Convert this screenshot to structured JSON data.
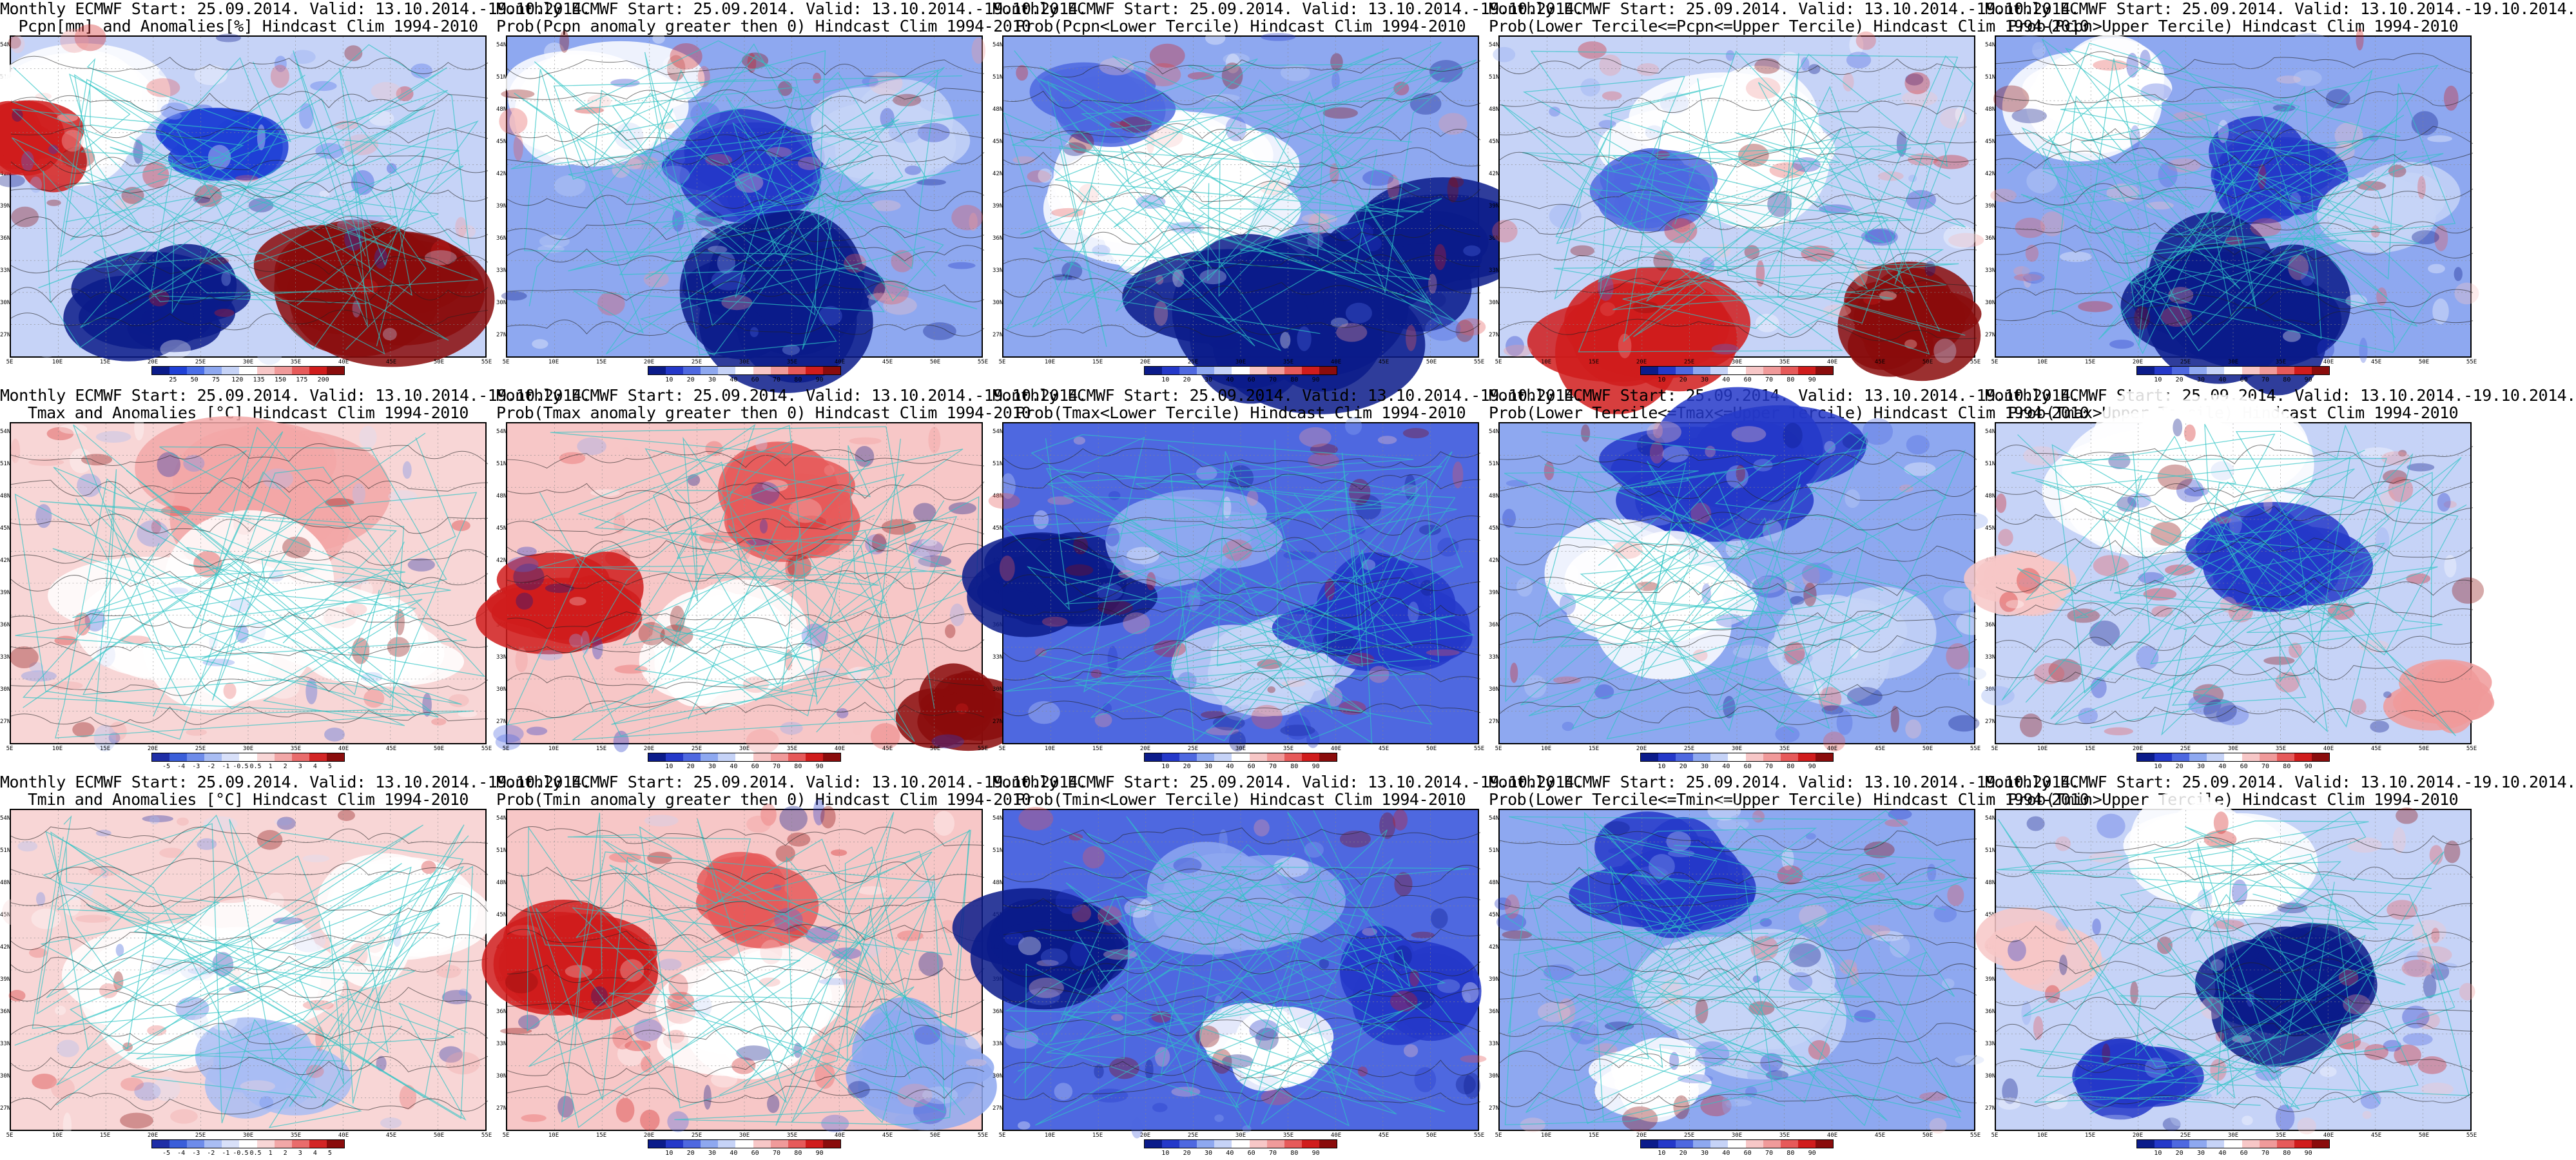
{
  "axes": {
    "lat_labels": [
      "54N",
      "51N",
      "48N",
      "45N",
      "42N",
      "39N",
      "36N",
      "33N",
      "30N",
      "27N"
    ],
    "lon_labels": [
      "5E",
      "10E",
      "15E",
      "20E",
      "25E",
      "30E",
      "35E",
      "40E",
      "45E",
      "50E",
      "55E"
    ]
  },
  "palettes": {
    "anom_pcp": [
      "#0b1b8a",
      "#1f40d6",
      "#4a6ee8",
      "#8ea8f0",
      "#c6d3f7",
      "#ffffff",
      "#f7c7c7",
      "#f09a9a",
      "#e65a5a",
      "#d01c1c",
      "#8a0c0c"
    ],
    "anom_t": [
      "#1f2ea6",
      "#3a5ed9",
      "#6e8cea",
      "#a9bdf3",
      "#d8e0f9",
      "#ffffff",
      "#f8d6d6",
      "#f2a7a7",
      "#e96c6c",
      "#d32525",
      "#8a0c0c"
    ],
    "prob": [
      "#0b1b8a",
      "#2438c9",
      "#4e68e0",
      "#8ea8f0",
      "#c6d3f7",
      "#ffffff",
      "#f7c7c7",
      "#f09a9a",
      "#e65a5a",
      "#d01c1c",
      "#8a0c0c"
    ]
  },
  "panels": [
    {
      "title1": "Monthly ECMWF Start: 25.09.2014. Valid: 13.10.2014.-19.10.2014.",
      "title2": "Pcpn[mm] and Anomalies[%] Hindcast Clim 1994-2010",
      "palette": "anom_pcp",
      "cb_ticks": [
        "25",
        "50",
        "75",
        "120",
        "135",
        "150",
        "175",
        "200"
      ],
      "base": "#c6d3f7",
      "blobs": [
        [
          "#ffffff",
          0.15,
          0.25,
          0.18
        ],
        [
          "#1f40d6",
          0.45,
          0.35,
          0.12
        ],
        [
          "#8a0c0c",
          0.75,
          0.75,
          0.2
        ],
        [
          "#0b1b8a",
          0.3,
          0.85,
          0.15
        ],
        [
          "#d01c1c",
          0.05,
          0.35,
          0.12
        ]
      ]
    },
    {
      "title1": "Monthly ECMWF Start: 25.09.2014. Valid: 13.10.2014.-19.10.2014.",
      "title2": "Prob(Pcpn anomaly greater then 0) Hindcast Clim 1994-2010",
      "palette": "prob",
      "cb_ticks": [
        "10",
        "20",
        "30",
        "40",
        "60",
        "70",
        "80",
        "90"
      ],
      "base": "#8ea8f0",
      "blobs": [
        [
          "#ffffff",
          0.2,
          0.2,
          0.18
        ],
        [
          "#2438c9",
          0.5,
          0.4,
          0.14
        ],
        [
          "#0b1b8a",
          0.6,
          0.8,
          0.22
        ],
        [
          "#c6d3f7",
          0.8,
          0.3,
          0.12
        ]
      ]
    },
    {
      "title1": "Monthly ECMWF Start: 25.09.2014. Valid: 13.10.2014.-19.10.2014.",
      "title2": "Prob(Pcpn<Lower Tercile) Hindcast Clim 1994-2010",
      "palette": "prob",
      "cb_ticks": [
        "10",
        "20",
        "30",
        "40",
        "60",
        "70",
        "80",
        "90"
      ],
      "base": "#8ea8f0",
      "blobs": [
        [
          "#ffffff",
          0.35,
          0.45,
          0.22
        ],
        [
          "#0b1b8a",
          0.55,
          0.9,
          0.25
        ],
        [
          "#0b1b8a",
          0.9,
          0.7,
          0.18
        ],
        [
          "#4e68e0",
          0.2,
          0.2,
          0.12
        ]
      ]
    },
    {
      "title1": "Monthly ECMWF Start: 25.09.2014. Valid: 13.10.2014.-19.10.2014.",
      "title2": "Prob(Lower Tercile<=Pcpn<=Upper Tercile) Hindcast Clim 1994-2010",
      "palette": "prob",
      "cb_ticks": [
        "10",
        "20",
        "30",
        "40",
        "60",
        "70",
        "80",
        "90"
      ],
      "base": "#c6d3f7",
      "blobs": [
        [
          "#ffffff",
          0.5,
          0.35,
          0.2
        ],
        [
          "#d01c1c",
          0.3,
          0.9,
          0.18
        ],
        [
          "#8a0c0c",
          0.85,
          0.9,
          0.15
        ],
        [
          "#4e68e0",
          0.3,
          0.5,
          0.12
        ]
      ]
    },
    {
      "title1": "Monthly ECMWF Start: 25.09.2014. Valid: 13.10.2014.-19.10.2014.",
      "title2": "Prob(Pcpn>Upper Tercile) Hindcast Clim 1994-2010",
      "palette": "prob",
      "cb_ticks": [
        "10",
        "20",
        "30",
        "40",
        "60",
        "70",
        "80",
        "90"
      ],
      "base": "#8ea8f0",
      "blobs": [
        [
          "#ffffff",
          0.2,
          0.2,
          0.16
        ],
        [
          "#2438c9",
          0.55,
          0.4,
          0.14
        ],
        [
          "#0b1b8a",
          0.55,
          0.85,
          0.2
        ],
        [
          "#c6d3f7",
          0.85,
          0.5,
          0.12
        ]
      ]
    },
    {
      "title1": "Monthly ECMWF Start: 25.09.2014. Valid: 13.10.2014.-19.10.2014.",
      "title2": "Tmax and Anomalies [°C] Hindcast Clim 1994-2010",
      "palette": "anom_t",
      "cb_ticks": [
        "-5",
        "-4",
        "-3",
        "-2",
        "-1",
        "-0.5",
        "0.5",
        "1",
        "2",
        "3",
        "4",
        "5"
      ],
      "base": "#f8d6d6",
      "blobs": [
        [
          "#f2a7a7",
          0.5,
          0.2,
          0.2
        ],
        [
          "#ffffff",
          0.4,
          0.6,
          0.22
        ],
        [
          "#ffffff",
          0.75,
          0.7,
          0.15
        ]
      ]
    },
    {
      "title1": "Monthly ECMWF Start: 25.09.2014. Valid: 13.10.2014.-19.10.2014.",
      "title2": "Prob(Tmax anomaly greater then 0) Hindcast Clim 1994-2010",
      "palette": "prob",
      "cb_ticks": [
        "10",
        "20",
        "30",
        "40",
        "60",
        "70",
        "80",
        "90"
      ],
      "base": "#f7c7c7",
      "blobs": [
        [
          "#d01c1c",
          0.15,
          0.55,
          0.15
        ],
        [
          "#e65a5a",
          0.6,
          0.25,
          0.14
        ],
        [
          "#ffffff",
          0.45,
          0.7,
          0.15
        ],
        [
          "#8a0c0c",
          0.95,
          0.9,
          0.1
        ]
      ]
    },
    {
      "title1": "Monthly ECMWF Start: 25.09.2014. Valid: 13.10.2014.-19.10.2014.",
      "title2": "Prob(Tmax<Lower Tercile) Hindcast Clim 1994-2010",
      "palette": "prob",
      "cb_ticks": [
        "10",
        "20",
        "30",
        "40",
        "60",
        "70",
        "80",
        "90"
      ],
      "base": "#4e68e0",
      "blobs": [
        [
          "#0b1b8a",
          0.1,
          0.5,
          0.15
        ],
        [
          "#8ea8f0",
          0.4,
          0.3,
          0.14
        ],
        [
          "#c6d3f7",
          0.55,
          0.75,
          0.14
        ],
        [
          "#2438c9",
          0.8,
          0.6,
          0.15
        ]
      ]
    },
    {
      "title1": "Monthly ECMWF Start: 25.09.2014. Valid: 13.10.2014.-19.10.2014.",
      "title2": "Prob(Lower Tercile<=Tmax<=Upper Tercile) Hindcast Clim 1994-2010",
      "palette": "prob",
      "cb_ticks": [
        "10",
        "20",
        "30",
        "40",
        "60",
        "70",
        "80",
        "90"
      ],
      "base": "#8ea8f0",
      "blobs": [
        [
          "#2438c9",
          0.5,
          0.15,
          0.2
        ],
        [
          "#ffffff",
          0.3,
          0.55,
          0.16
        ],
        [
          "#c6d3f7",
          0.75,
          0.7,
          0.14
        ]
      ]
    },
    {
      "title1": "Monthly ECMWF Start: 25.09.2014. Valid: 13.10.2014.-19.10.2014.",
      "title2": "Prob(Tmax>Upper Tercile) Hindcast Clim 1994-2010",
      "palette": "prob",
      "cb_ticks": [
        "10",
        "20",
        "30",
        "40",
        "60",
        "70",
        "80",
        "90"
      ],
      "base": "#c6d3f7",
      "blobs": [
        [
          "#ffffff",
          0.4,
          0.15,
          0.2
        ],
        [
          "#2438c9",
          0.6,
          0.45,
          0.15
        ],
        [
          "#f7c7c7",
          0.08,
          0.5,
          0.1
        ],
        [
          "#f09a9a",
          0.95,
          0.85,
          0.1
        ]
      ]
    },
    {
      "title1": "Monthly ECMWF Start: 25.09.2014. Valid: 13.10.2014.-19.10.2014.",
      "title2": "Tmin and Anomalies [°C] Hindcast Clim 1994-2010",
      "palette": "anom_t",
      "cb_ticks": [
        "-5",
        "-4",
        "-3",
        "-2",
        "-1",
        "-0.5",
        "0.5",
        "1",
        "2",
        "3",
        "4",
        "5"
      ],
      "base": "#f8d6d6",
      "blobs": [
        [
          "#ffffff",
          0.4,
          0.6,
          0.22
        ],
        [
          "#a9bdf3",
          0.55,
          0.8,
          0.12
        ],
        [
          "#ffffff",
          0.8,
          0.35,
          0.15
        ]
      ]
    },
    {
      "title1": "Monthly ECMWF Start: 25.09.2014. Valid: 13.10.2014.-19.10.2014.",
      "title2": "Prob(Tmin anomaly greater then 0) Hindcast Clim 1994-2010",
      "palette": "prob",
      "cb_ticks": [
        "10",
        "20",
        "30",
        "40",
        "60",
        "70",
        "80",
        "90"
      ],
      "base": "#f7c7c7",
      "blobs": [
        [
          "#d01c1c",
          0.15,
          0.45,
          0.15
        ],
        [
          "#ffffff",
          0.5,
          0.65,
          0.18
        ],
        [
          "#8ea8f0",
          0.85,
          0.8,
          0.14
        ],
        [
          "#e65a5a",
          0.55,
          0.25,
          0.12
        ]
      ]
    },
    {
      "title1": "Monthly ECMWF Start: 25.09.2014. Valid: 13.10.2014.-19.10.2014.",
      "title2": "Prob(Tmin<Lower Tercile) Hindcast Clim 1994-2010",
      "palette": "prob",
      "cb_ticks": [
        "10",
        "20",
        "30",
        "40",
        "60",
        "70",
        "80",
        "90"
      ],
      "base": "#4e68e0",
      "blobs": [
        [
          "#0b1b8a",
          0.1,
          0.4,
          0.15
        ],
        [
          "#8ea8f0",
          0.5,
          0.3,
          0.15
        ],
        [
          "#ffffff",
          0.55,
          0.75,
          0.12
        ],
        [
          "#2438c9",
          0.85,
          0.55,
          0.14
        ]
      ]
    },
    {
      "title1": "Monthly ECMWF Start: 25.09.2014. Valid: 13.10.2014.-19.10.2014.",
      "title2": "Prob(Lower Tercile<=Tmin<=Upper Tercile) Hindcast Clim 1994-2010",
      "palette": "prob",
      "cb_ticks": [
        "10",
        "20",
        "30",
        "40",
        "60",
        "70",
        "80",
        "90"
      ],
      "base": "#8ea8f0",
      "blobs": [
        [
          "#2438c9",
          0.4,
          0.2,
          0.18
        ],
        [
          "#c6d3f7",
          0.5,
          0.6,
          0.18
        ],
        [
          "#ffffff",
          0.3,
          0.85,
          0.1
        ]
      ]
    },
    {
      "title1": "Monthly ECMWF Start: 25.09.2014. Valid: 13.10.2014.-19.10.2014.",
      "title2": "Prob(Tmin>Upper Tercile) Hindcast Clim 1994-2010",
      "palette": "prob",
      "cb_ticks": [
        "10",
        "20",
        "30",
        "40",
        "60",
        "70",
        "80",
        "90"
      ],
      "base": "#c6d3f7",
      "blobs": [
        [
          "#0b1b8a",
          0.65,
          0.55,
          0.16
        ],
        [
          "#ffffff",
          0.45,
          0.15,
          0.16
        ],
        [
          "#f7c7c7",
          0.1,
          0.45,
          0.1
        ],
        [
          "#2438c9",
          0.3,
          0.8,
          0.12
        ]
      ]
    }
  ]
}
